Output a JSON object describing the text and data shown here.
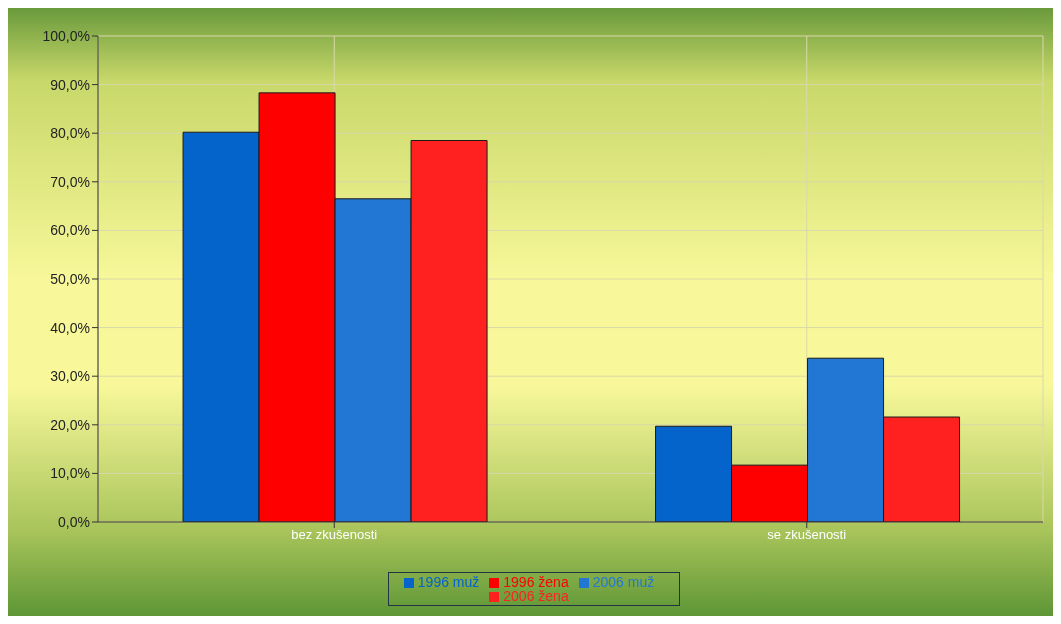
{
  "chart_data": {
    "type": "bar",
    "categories": [
      "bez zkušenosti",
      "se zkušenosti"
    ],
    "series": [
      {
        "name": "1996 muž",
        "color": "#0563cc",
        "values": [
          80.2,
          19.7
        ]
      },
      {
        "name": "1996 žena",
        "color": "#ff0000",
        "values": [
          88.3,
          11.7
        ]
      },
      {
        "name": "2006 muž",
        "color": "#2277d4",
        "values": [
          66.5,
          33.7
        ]
      },
      {
        "name": "2006 žena",
        "color": "#ff2020",
        "values": [
          78.5,
          21.6
        ]
      }
    ],
    "ylim": [
      0,
      100
    ],
    "yticks": [
      {
        "value": 0,
        "label": "0,0%"
      },
      {
        "value": 10,
        "label": "10,0%"
      },
      {
        "value": 20,
        "label": "20,0%"
      },
      {
        "value": 30,
        "label": "30,0%"
      },
      {
        "value": 40,
        "label": "40,0%"
      },
      {
        "value": 50,
        "label": "50,0%"
      },
      {
        "value": 60,
        "label": "60,0%"
      },
      {
        "value": 70,
        "label": "70,0%"
      },
      {
        "value": 80,
        "label": "80,0%"
      },
      {
        "value": 90,
        "label": "90,0%"
      },
      {
        "value": 100,
        "label": "100,0%"
      }
    ],
    "grid": true,
    "legend": "bottom"
  }
}
